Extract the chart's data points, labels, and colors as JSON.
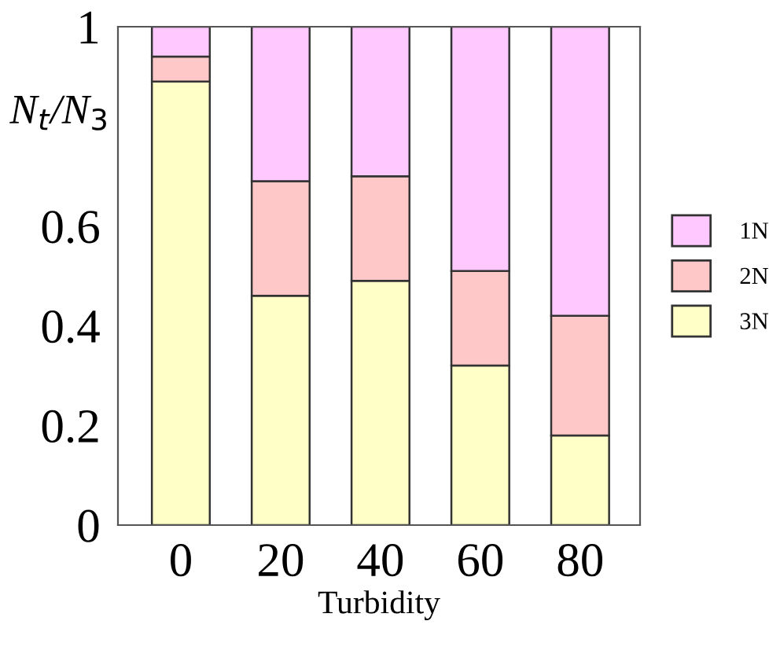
{
  "chart_data": {
    "type": "bar",
    "stacked": true,
    "xlabel": "Turbidity",
    "ylabel": "N$_{t}$/N$_{3}$",
    "categories": [
      "0",
      "20",
      "40",
      "60",
      "80"
    ],
    "series": [
      {
        "name": "3N",
        "color": "#ffffc8",
        "values": [
          0.89,
          0.46,
          0.49,
          0.32,
          0.18
        ]
      },
      {
        "name": "2N",
        "color": "#ffc8c8",
        "values": [
          0.05,
          0.23,
          0.21,
          0.19,
          0.24
        ]
      },
      {
        "name": "1N",
        "color": "#ffc8ff",
        "values": [
          0.06,
          0.31,
          0.3,
          0.49,
          0.58
        ]
      }
    ],
    "ylim": [
      0,
      1
    ],
    "yticks": [
      0,
      0.2,
      0.4,
      0.6,
      1
    ],
    "grid": false,
    "legend": "right"
  }
}
